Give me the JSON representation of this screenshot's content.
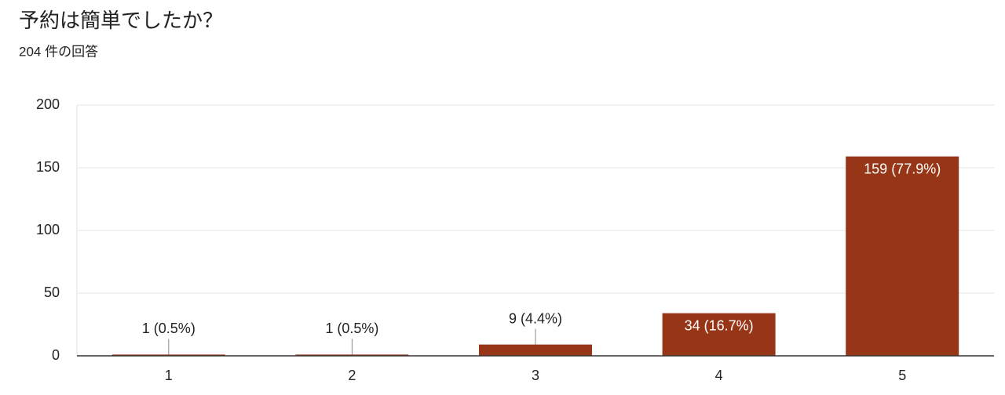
{
  "chart_data": {
    "type": "bar",
    "title": "予約は簡単でしたか？",
    "subtitle": "204 件の回答",
    "categories": [
      "1",
      "2",
      "3",
      "4",
      "5"
    ],
    "values": [
      1,
      1,
      9,
      34,
      159
    ],
    "value_labels": [
      "1 (0.5%)",
      "1 (0.5%)",
      "9 (4.4%)",
      "34 (16.7%)",
      "159 (77.9%)"
    ],
    "color": "#973617",
    "ylim": [
      0,
      200
    ],
    "yticks": [
      0,
      50,
      100,
      150,
      200
    ],
    "grid": true
  }
}
